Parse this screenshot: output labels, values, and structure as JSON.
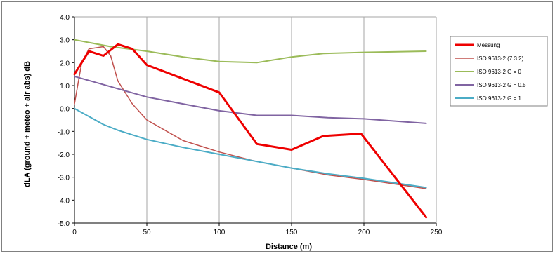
{
  "chart_data": {
    "type": "line",
    "title": "",
    "xlabel": "Distance (m)",
    "ylabel": "dLA (ground + meteo + air abs)  dB",
    "xlim": [
      0,
      250
    ],
    "ylim": [
      -5.0,
      4.0
    ],
    "xticks": [
      0,
      50,
      100,
      150,
      200,
      250
    ],
    "yticks": [
      4.0,
      3.0,
      2.0,
      1.0,
      0.0,
      -1.0,
      -2.0,
      -3.0,
      -4.0,
      -5.0
    ],
    "ytick_labels": [
      "4.0",
      "3.0",
      "2.0",
      "1.0",
      "0.0",
      "-1.0",
      "-2.0",
      "-3.0",
      "-4.0",
      "-5.0"
    ],
    "xtick_labels": [
      "0",
      "50",
      "100",
      "150",
      "200",
      "250"
    ],
    "grid": "vertical",
    "legend_position": "right",
    "series": [
      {
        "name": "Messung",
        "color": "#ee0000",
        "width": 3,
        "points": [
          [
            0,
            1.5
          ],
          [
            5,
            2.0
          ],
          [
            10,
            2.5
          ],
          [
            20,
            2.3
          ],
          [
            30,
            2.8
          ],
          [
            40,
            2.6
          ],
          [
            50,
            1.9
          ],
          [
            100,
            0.7
          ],
          [
            126,
            -1.55
          ],
          [
            150,
            -1.8
          ],
          [
            172,
            -1.2
          ],
          [
            198,
            -1.1
          ],
          [
            243,
            -4.75
          ]
        ]
      },
      {
        "name": "ISO 9613-2 (7.3.2)",
        "color": "#c0504d",
        "width": 1.5,
        "points": [
          [
            0,
            0.2
          ],
          [
            5,
            2.0
          ],
          [
            10,
            2.6
          ],
          [
            20,
            2.7
          ],
          [
            25,
            2.3
          ],
          [
            30,
            1.2
          ],
          [
            40,
            0.2
          ],
          [
            50,
            -0.5
          ],
          [
            75,
            -1.4
          ],
          [
            100,
            -1.9
          ],
          [
            125,
            -2.3
          ],
          [
            150,
            -2.6
          ],
          [
            175,
            -2.9
          ],
          [
            200,
            -3.1
          ],
          [
            243,
            -3.5
          ]
        ]
      },
      {
        "name": "ISO 9613-2  G = 0",
        "color": "#9bbb59",
        "width": 2,
        "points": [
          [
            0,
            3.0
          ],
          [
            25,
            2.7
          ],
          [
            50,
            2.5
          ],
          [
            75,
            2.25
          ],
          [
            100,
            2.05
          ],
          [
            126,
            2.0
          ],
          [
            150,
            2.25
          ],
          [
            172,
            2.4
          ],
          [
            200,
            2.45
          ],
          [
            243,
            2.5
          ]
        ]
      },
      {
        "name": "ISO 9613-2  G = 0.5",
        "color": "#8064a2",
        "width": 2,
        "points": [
          [
            0,
            1.4
          ],
          [
            25,
            0.95
          ],
          [
            50,
            0.5
          ],
          [
            75,
            0.2
          ],
          [
            100,
            -0.1
          ],
          [
            126,
            -0.3
          ],
          [
            150,
            -0.3
          ],
          [
            175,
            -0.4
          ],
          [
            200,
            -0.45
          ],
          [
            243,
            -0.65
          ]
        ]
      },
      {
        "name": "ISO 9613-2 G = 1",
        "color": "#4bacc6",
        "width": 2,
        "points": [
          [
            0,
            0.0
          ],
          [
            20,
            -0.7
          ],
          [
            30,
            -0.95
          ],
          [
            50,
            -1.35
          ],
          [
            75,
            -1.7
          ],
          [
            100,
            -2.0
          ],
          [
            125,
            -2.3
          ],
          [
            150,
            -2.6
          ],
          [
            175,
            -2.85
          ],
          [
            200,
            -3.05
          ],
          [
            243,
            -3.45
          ]
        ]
      }
    ]
  }
}
